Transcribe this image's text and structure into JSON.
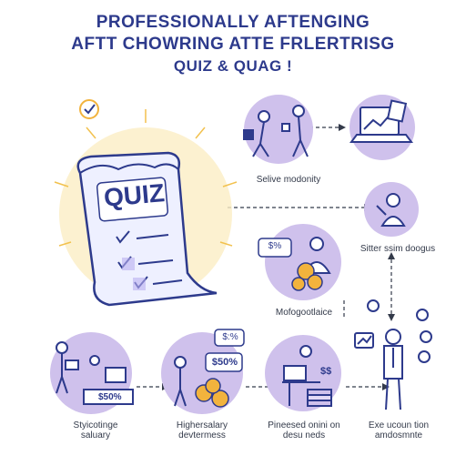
{
  "title": {
    "line1": "PROFESSIONALLY AFTENGING",
    "line2": "AFTT CHOWRING ATTE FRLERTRISG",
    "line3": "QUIZ & QUAG !"
  },
  "quiz_label": "QUIZ",
  "captions": {
    "selive": "Selive modonity",
    "sitter": "Sitter ssim doogus",
    "mofogo": "Mofogootlaice",
    "stylicot": "Styicotinge\nsaluary",
    "higher": "Highersalary\ndevtermess",
    "pineesed": "Pineesed onini on\ndesu neds",
    "exe": "Exe ucoun tion\namdosmnte"
  },
  "money_labels": {
    "chat_small": "$%",
    "desk_a": "$50%",
    "bubble_small": "$:%",
    "bubble_big": "$50%",
    "desk_b": "$$"
  },
  "colors": {
    "title": "#2d3a8c",
    "circle": "#cfc1ec",
    "outline": "#2d3a8c",
    "coin": "#f2b33d",
    "burst": "#f7d98a"
  }
}
